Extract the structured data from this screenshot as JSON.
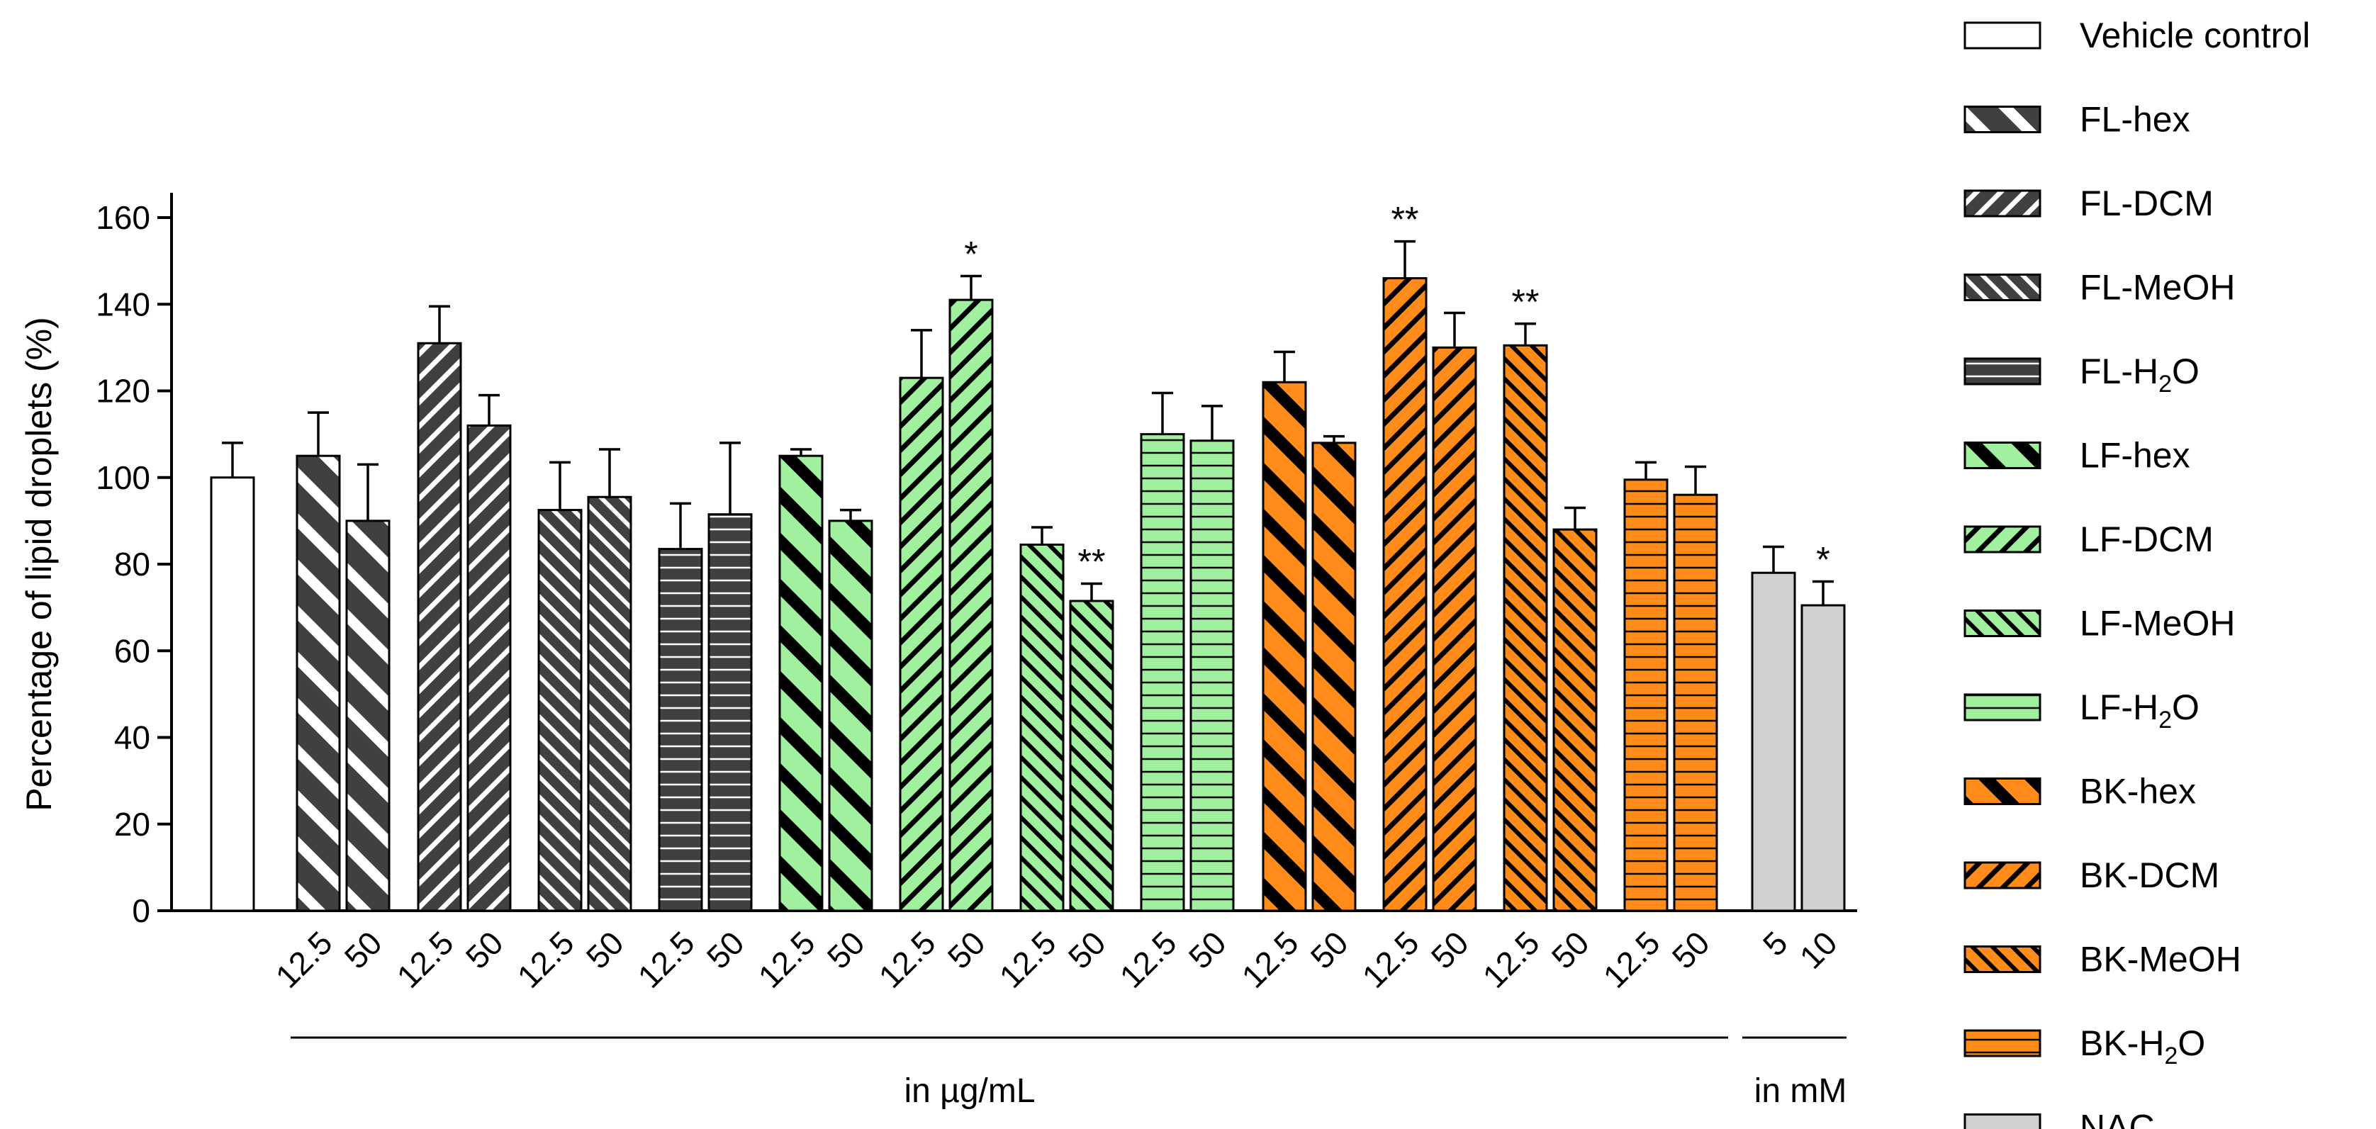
{
  "chart_data": {
    "type": "bar",
    "ylabel": "Percentage of lipid droplets (%)",
    "ylim": [
      0,
      160
    ],
    "yticks": [
      0,
      20,
      40,
      60,
      80,
      100,
      120,
      140,
      160
    ],
    "x_group_labels": {
      "ug": "in µg/mL",
      "mm": "in mM"
    },
    "series": [
      {
        "name": "Vehicle control",
        "pattern": "none",
        "fill": "#ffffff",
        "bars": [
          {
            "label": "",
            "value": 100,
            "error": 8,
            "sig": ""
          }
        ]
      },
      {
        "name": "FL-hex",
        "pattern": "diagL",
        "fill": "#404040",
        "bars": [
          {
            "label": "12.5",
            "value": 105,
            "error": 10,
            "sig": ""
          },
          {
            "label": "50",
            "value": 90,
            "error": 13,
            "sig": ""
          }
        ]
      },
      {
        "name": "FL-DCM",
        "pattern": "diagR",
        "fill": "#404040",
        "bars": [
          {
            "label": "12.5",
            "value": 131,
            "error": 8.5,
            "sig": ""
          },
          {
            "label": "50",
            "value": 112,
            "error": 7,
            "sig": ""
          }
        ]
      },
      {
        "name": "FL-MeOH",
        "pattern": "diagLdense",
        "fill": "#404040",
        "bars": [
          {
            "label": "12.5",
            "value": 92.5,
            "error": 11,
            "sig": ""
          },
          {
            "label": "50",
            "value": 95.5,
            "error": 11,
            "sig": ""
          }
        ]
      },
      {
        "name": "FL-H2O",
        "pattern": "horiz",
        "fill": "#404040",
        "bars": [
          {
            "label": "12.5",
            "value": 83.5,
            "error": 10.5,
            "sig": ""
          },
          {
            "label": "50",
            "value": 91.5,
            "error": 16.5,
            "sig": ""
          }
        ]
      },
      {
        "name": "LF-hex",
        "pattern": "diagLthick",
        "fill": "#a0f0a0",
        "bars": [
          {
            "label": "12.5",
            "value": 105,
            "error": 1.5,
            "sig": ""
          },
          {
            "label": "50",
            "value": 90,
            "error": 2.5,
            "sig": ""
          }
        ]
      },
      {
        "name": "LF-DCM",
        "pattern": "diagR",
        "fill": "#a0f0a0",
        "bars": [
          {
            "label": "12.5",
            "value": 123,
            "error": 11,
            "sig": ""
          },
          {
            "label": "50",
            "value": 141,
            "error": 5.5,
            "sig": "*"
          }
        ]
      },
      {
        "name": "LF-MeOH",
        "pattern": "diagLdense",
        "fill": "#a0f0a0",
        "bars": [
          {
            "label": "12.5",
            "value": 84.5,
            "error": 4,
            "sig": ""
          },
          {
            "label": "50",
            "value": 71.5,
            "error": 4,
            "sig": "**"
          }
        ]
      },
      {
        "name": "LF-H2O",
        "pattern": "horiz",
        "fill": "#a0f0a0",
        "bars": [
          {
            "label": "12.5",
            "value": 110,
            "error": 9.5,
            "sig": ""
          },
          {
            "label": "50",
            "value": 108.5,
            "error": 8,
            "sig": ""
          }
        ]
      },
      {
        "name": "BK-hex",
        "pattern": "diagLthick",
        "fill": "#ff8c1a",
        "bars": [
          {
            "label": "12.5",
            "value": 122,
            "error": 7,
            "sig": ""
          },
          {
            "label": "50",
            "value": 108,
            "error": 1.5,
            "sig": ""
          }
        ]
      },
      {
        "name": "BK-DCM",
        "pattern": "diagR",
        "fill": "#ff8c1a",
        "bars": [
          {
            "label": "12.5",
            "value": 146,
            "error": 8.5,
            "sig": "**"
          },
          {
            "label": "50",
            "value": 130,
            "error": 8,
            "sig": ""
          }
        ]
      },
      {
        "name": "BK-MeOH",
        "pattern": "diagLdense",
        "fill": "#ff8c1a",
        "bars": [
          {
            "label": "12.5",
            "value": 130.5,
            "error": 5,
            "sig": "**"
          },
          {
            "label": "50",
            "value": 88,
            "error": 5,
            "sig": ""
          }
        ]
      },
      {
        "name": "BK-H2O",
        "pattern": "horiz",
        "fill": "#ff8c1a",
        "bars": [
          {
            "label": "12.5",
            "value": 99.5,
            "error": 4,
            "sig": ""
          },
          {
            "label": "50",
            "value": 96,
            "error": 6.5,
            "sig": ""
          }
        ]
      },
      {
        "name": "NAC",
        "pattern": "none",
        "fill": "#d0d0d0",
        "bars": [
          {
            "label": "5",
            "value": 78,
            "error": 6,
            "sig": ""
          },
          {
            "label": "10",
            "value": 70.5,
            "error": 5.5,
            "sig": "*"
          }
        ]
      }
    ]
  }
}
